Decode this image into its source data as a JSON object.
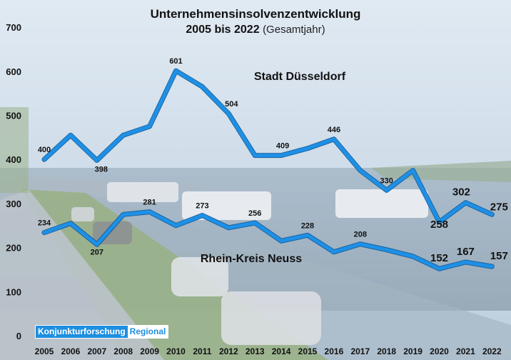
{
  "header": {
    "title": "Unternehmensinsolvenzentwicklung",
    "subtitle_bold": "2005 bis 2022",
    "subtitle_light": "(Gesamtjahr)"
  },
  "badge": {
    "left": "Konjunkturforschung",
    "right": "Regional"
  },
  "colors": {
    "line": "#1e90e6",
    "line_edge": "#0d5a9a",
    "title": "#111111"
  },
  "chart_data": {
    "type": "line",
    "title": "Unternehmensinsolvenzentwicklung 2005 bis 2022 (Gesamtjahr)",
    "x": [
      "2005",
      "2006",
      "2007",
      "2008",
      "2009",
      "2010",
      "2011",
      "2012",
      "2013",
      "2014",
      "2015",
      "2016",
      "2017",
      "2018",
      "2019",
      "2020",
      "2021",
      "2022"
    ],
    "ylim": [
      0,
      700
    ],
    "yticks": [
      0,
      100,
      200,
      300,
      400,
      500,
      600,
      700
    ],
    "grid": false,
    "series": [
      {
        "name": "Stadt Düsseldorf",
        "values": [
          400,
          455,
          398,
          455,
          475,
          601,
          565,
          504,
          409,
          409,
          425,
          446,
          375,
          330,
          375,
          258,
          302,
          275
        ],
        "labels": {
          "0": "400",
          "2": "398",
          "5": "601",
          "7": "504",
          "9": "409",
          "11": "446",
          "13": "330",
          "15": "258",
          "16": "302",
          "17": "275"
        }
      },
      {
        "name": "Rhein-Kreis Neuss",
        "values": [
          234,
          255,
          207,
          275,
          281,
          250,
          273,
          245,
          256,
          215,
          228,
          190,
          208,
          195,
          180,
          152,
          167,
          157
        ],
        "labels": {
          "0": "234",
          "2": "207",
          "4": "281",
          "6": "273",
          "8": "256",
          "10": "228",
          "12": "208",
          "15": "152",
          "16": "167",
          "17": "157"
        }
      }
    ]
  }
}
